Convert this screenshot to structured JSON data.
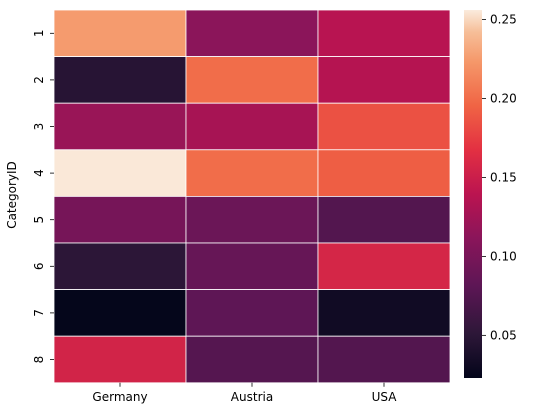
{
  "chart_data": {
    "type": "heatmap",
    "title": "",
    "xlabel": "",
    "ylabel": "CategoryID",
    "x_categories": [
      "Germany",
      "Austria",
      "USA"
    ],
    "y_categories": [
      "1",
      "2",
      "3",
      "4",
      "5",
      "6",
      "7",
      "8"
    ],
    "values": [
      [
        0.225,
        0.112,
        0.138
      ],
      [
        0.047,
        0.2,
        0.136
      ],
      [
        0.12,
        0.128,
        0.185
      ],
      [
        0.255,
        0.2,
        0.192
      ],
      [
        0.098,
        0.091,
        0.075
      ],
      [
        0.05,
        0.087,
        0.157
      ],
      [
        0.024,
        0.082,
        0.032
      ],
      [
        0.155,
        0.076,
        0.075
      ]
    ],
    "colorbar": {
      "min": 0.023,
      "max": 0.256,
      "ticks": [
        0.05,
        0.1,
        0.15,
        0.2,
        0.25
      ],
      "tick_labels": [
        "0.05",
        "0.10",
        "0.15",
        "0.20",
        "0.25"
      ]
    },
    "colormap": "rocket",
    "grid": false,
    "cell_borders": "#ffffff",
    "legend": "colorbar-right"
  }
}
